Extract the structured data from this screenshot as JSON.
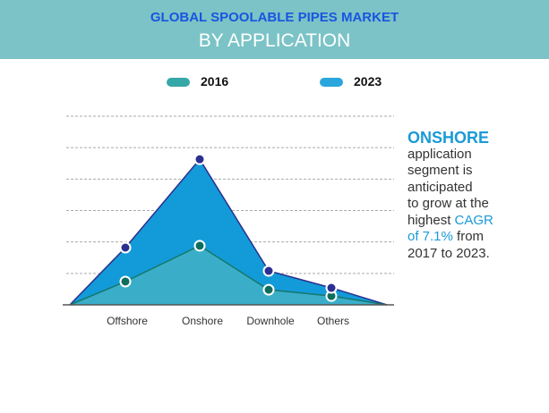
{
  "header": {
    "title": "GLOBAL SPOOLABLE PIPES MARKET",
    "subtitle": "BY APPLICATION"
  },
  "note": {
    "highlight": "ONSHORE",
    "line1": "application",
    "line2": "segment is",
    "line3": "anticipated",
    "line4": "to grow at the",
    "line5a": "highest ",
    "line5b": "CAGR",
    "line6a": "of 7.1%",
    "line6b": " from",
    "line7": "2017 to 2023."
  },
  "chart_data": {
    "type": "area",
    "categories": [
      "Offshore",
      "Onshore",
      "Downhole",
      "Others"
    ],
    "series": [
      {
        "name": "2016",
        "color": "#36a8a8",
        "values": [
          0.74,
          1.88,
          0.48,
          0.28
        ]
      },
      {
        "name": "2023",
        "color": "#2aa6dc",
        "values": [
          1.82,
          4.63,
          1.08,
          0.54
        ]
      }
    ],
    "ylim": [
      0,
      6
    ],
    "grid": true,
    "legend": "top"
  }
}
